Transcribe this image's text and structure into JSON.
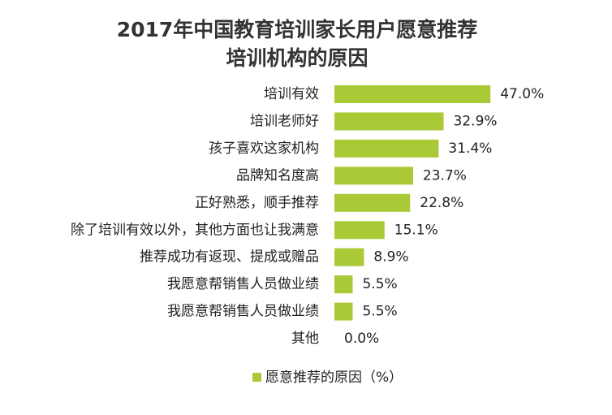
{
  "chart_data": {
    "type": "bar",
    "orientation": "horizontal",
    "title": [
      "2017年中国教育培训家长用户愿意推荐",
      "培训机构的原因"
    ],
    "categories": [
      "培训有效",
      "培训老师好",
      "孩子喜欢这家机构",
      "品牌知名度高",
      "正好熟悉，顺手推荐",
      "除了培训有效以外，其他方面也让我满意",
      "推荐成功有返现、提成或赠品",
      "我愿意帮销售人员做业绩",
      "我愿意帮销售人员做业绩",
      "其他"
    ],
    "series": [
      {
        "name": "愿意推荐的原因（%）",
        "color": "#a9c936",
        "values": [
          47.0,
          32.9,
          31.4,
          23.7,
          22.8,
          15.1,
          8.9,
          5.5,
          5.5,
          0.0
        ],
        "value_labels": [
          "47.0%",
          "32.9%",
          "31.4%",
          "23.7%",
          "22.8%",
          "15.1%",
          "8.9%",
          "5.5%",
          "5.5%",
          "0.0%"
        ]
      }
    ],
    "legend": "bottom"
  }
}
